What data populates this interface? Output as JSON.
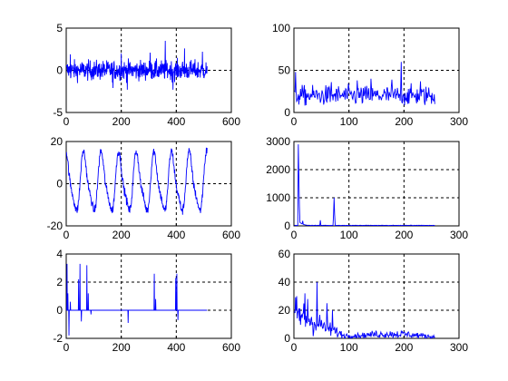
{
  "chart_data": [
    {
      "type": "line",
      "title": "",
      "xlabel": "",
      "ylabel": "",
      "xlim": [
        0,
        600
      ],
      "ylim": [
        -5,
        5
      ],
      "xticks": [
        "0",
        "200",
        "400",
        "600"
      ],
      "yticks": [
        "-5",
        "0",
        "5"
      ],
      "grid": true,
      "color": "#0000ff",
      "series": [
        {
          "x": [
            1,
            512
          ],
          "waveform": {
            "kind": "noise",
            "amplitude": 1.1,
            "spikes": [
              [
                15,
                1.9
              ],
              [
                170,
                -2.1
              ],
              [
                200,
                2.0
              ],
              [
                222,
                -2.3
              ],
              [
                305,
                2.1
              ],
              [
                360,
                3.5
              ],
              [
                388,
                -2.3
              ],
              [
                430,
                2.6
              ],
              [
                495,
                2.2
              ]
            ]
          }
        }
      ]
    },
    {
      "type": "line",
      "title": "",
      "xlabel": "",
      "ylabel": "",
      "xlim": [
        0,
        300
      ],
      "ylim": [
        0,
        100
      ],
      "xticks": [
        "0",
        "100",
        "200",
        "300"
      ],
      "yticks": [
        "0",
        "50",
        "100"
      ],
      "grid": true,
      "color": "#0000ff",
      "series": [
        {
          "x": [
            1,
            256
          ],
          "waveform": {
            "kind": "abs-noise",
            "base": 20,
            "amplitude": 14,
            "spikes": [
              [
                3,
                48
              ],
              [
                68,
                36
              ],
              [
                115,
                38
              ],
              [
                140,
                40
              ],
              [
                178,
                39
              ],
              [
                195,
                60
              ],
              [
                230,
                37
              ]
            ]
          }
        }
      ]
    },
    {
      "type": "line",
      "title": "",
      "xlabel": "",
      "ylabel": "",
      "xlim": [
        0,
        600
      ],
      "ylim": [
        -20,
        20
      ],
      "xticks": [
        "0",
        "200",
        "400",
        "600"
      ],
      "yticks": [
        "-20",
        "0",
        "20"
      ],
      "grid": true,
      "color": "#0000ff",
      "series": [
        {
          "x": [
            1,
            512
          ],
          "waveform": {
            "kind": "periodic",
            "period": 64,
            "amplitude": 13,
            "noise": 2.5
          }
        }
      ]
    },
    {
      "type": "line",
      "title": "",
      "xlabel": "",
      "ylabel": "",
      "xlim": [
        0,
        300
      ],
      "ylim": [
        0,
        3000
      ],
      "xticks": [
        "0",
        "100",
        "200",
        "300"
      ],
      "yticks": [
        "0",
        "1000",
        "2000",
        "3000"
      ],
      "grid": true,
      "color": "#0000ff",
      "series": [
        {
          "x": [
            1,
            256
          ],
          "waveform": {
            "kind": "spectrum",
            "floor": 15,
            "peaks": [
              [
                8,
                2900
              ],
              [
                9,
                1800
              ],
              [
                10,
                700
              ],
              [
                16,
                180
              ],
              [
                48,
                200
              ],
              [
                72,
                400
              ],
              [
                73,
                1000
              ],
              [
                74,
                400
              ]
            ]
          }
        }
      ]
    },
    {
      "type": "line",
      "title": "",
      "xlabel": "",
      "ylabel": "",
      "xlim": [
        0,
        600
      ],
      "ylim": [
        -2,
        4
      ],
      "xticks": [
        "0",
        "200",
        "400",
        "600"
      ],
      "yticks": [
        "-2",
        "0",
        "2",
        "4"
      ],
      "grid": true,
      "color": "#0000ff",
      "series": [
        {
          "x": [
            1,
            512
          ],
          "waveform": {
            "kind": "impulses",
            "impulses": [
              [
                3,
                3.3
              ],
              [
                6,
                1.2
              ],
              [
                10,
                -1.8
              ],
              [
                15,
                0.6
              ],
              [
                45,
                2.2
              ],
              [
                50,
                3.3
              ],
              [
                55,
                -0.8
              ],
              [
                75,
                3.2
              ],
              [
                80,
                1.2
              ],
              [
                90,
                -0.3
              ],
              [
                225,
                -0.9
              ],
              [
                320,
                2.6
              ],
              [
                325,
                0.8
              ],
              [
                398,
                2.3
              ],
              [
                402,
                2.6
              ],
              [
                406,
                -0.7
              ]
            ]
          }
        }
      ]
    },
    {
      "type": "line",
      "title": "",
      "xlabel": "",
      "ylabel": "",
      "xlim": [
        0,
        300
      ],
      "ylim": [
        0,
        60
      ],
      "xticks": [
        "0",
        "100",
        "200",
        "300"
      ],
      "yticks": [
        "0",
        "20",
        "40",
        "60"
      ],
      "grid": true,
      "color": "#0000ff",
      "series": [
        {
          "x": [
            1,
            256
          ],
          "waveform": {
            "kind": "decay",
            "segments": [
              [
                0,
                18,
                10
              ],
              [
                90,
                2,
                1.5
              ],
              [
                120,
                2,
                1.2
              ],
              [
                150,
                3,
                2
              ],
              [
                200,
                3,
                2
              ],
              [
                256,
                1,
                1
              ]
            ],
            "spikes": [
              [
                5,
                30
              ],
              [
                20,
                32
              ],
              [
                25,
                28
              ],
              [
                42,
                40
              ],
              [
                60,
                25
              ],
              [
                70,
                20
              ]
            ]
          }
        }
      ]
    }
  ]
}
